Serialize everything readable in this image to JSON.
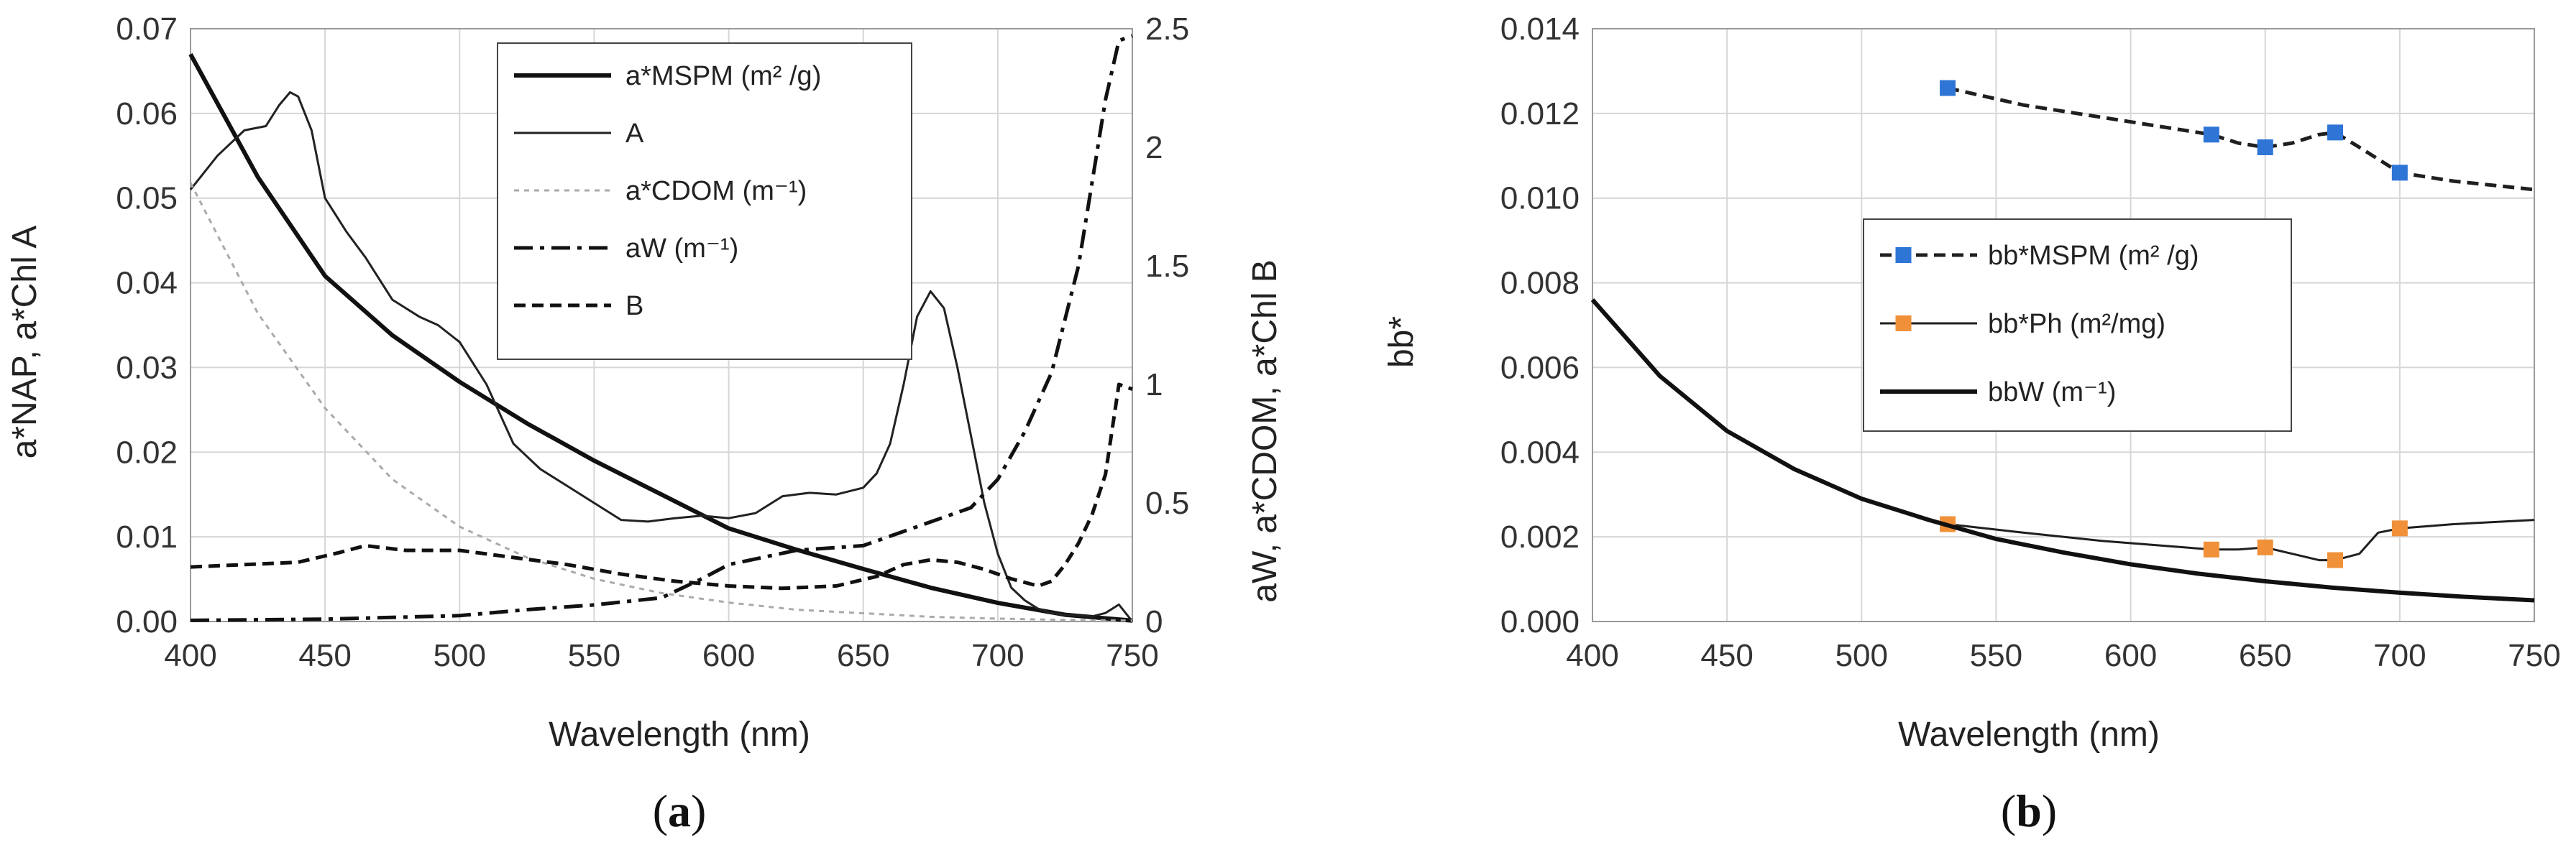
{
  "chart_data": [
    {
      "id": "a",
      "type": "line",
      "caption_open": "(",
      "caption_letter": "a",
      "caption_close": ")",
      "xlabel": "Wavelength (nm)",
      "ylabel_left": "a*NAP, a*Chl A",
      "ylabel_right": "aW, a*CDOM, a*Chl B",
      "xlim": [
        400,
        750
      ],
      "ylim_left": [
        0,
        0.07
      ],
      "ylim_right": [
        0,
        2.5
      ],
      "xticks": [
        "400",
        "450",
        "500",
        "550",
        "600",
        "650",
        "700",
        "750"
      ],
      "yticks_left": [
        "0.00",
        "0.01",
        "0.02",
        "0.03",
        "0.04",
        "0.05",
        "0.06",
        "0.07"
      ],
      "yticks_right": [
        "0",
        "0.5",
        "1",
        "1.5",
        "2",
        "2.5"
      ],
      "grid": true,
      "legend": [
        {
          "key": "aMSPM",
          "label": "a*MSPM (m² /g)"
        },
        {
          "key": "A",
          "label": "A"
        },
        {
          "key": "aCDOM",
          "label": "a*CDOM (m⁻¹)"
        },
        {
          "key": "aW",
          "label": "aW (m⁻¹)"
        },
        {
          "key": "B",
          "label": "B"
        }
      ],
      "series": [
        {
          "key": "aMSPM",
          "name": "a*MSPM (m² /g)",
          "axis": "left",
          "style": "thick",
          "color": "#111111",
          "x": [
            400,
            425,
            450,
            475,
            500,
            525,
            550,
            575,
            600,
            625,
            650,
            675,
            700,
            725,
            750
          ],
          "y": [
            0.067,
            0.0525,
            0.0408,
            0.0338,
            0.0283,
            0.0234,
            0.019,
            0.015,
            0.011,
            0.0085,
            0.0062,
            0.004,
            0.0022,
            0.0008,
            0.0001
          ]
        },
        {
          "key": "A",
          "name": "A",
          "axis": "left",
          "style": "thin",
          "color": "#222222",
          "x": [
            400,
            410,
            420,
            428,
            433,
            437,
            440,
            445,
            450,
            458,
            465,
            475,
            485,
            492,
            500,
            510,
            520,
            530,
            540,
            550,
            560,
            570,
            580,
            590,
            600,
            610,
            620,
            630,
            640,
            650,
            655,
            660,
            665,
            670,
            675,
            680,
            685,
            690,
            695,
            700,
            705,
            710,
            715,
            720,
            725,
            730,
            735,
            740,
            745,
            750
          ],
          "y": [
            0.051,
            0.055,
            0.058,
            0.0585,
            0.061,
            0.0625,
            0.062,
            0.058,
            0.05,
            0.046,
            0.043,
            0.038,
            0.036,
            0.035,
            0.033,
            0.028,
            0.021,
            0.018,
            0.016,
            0.014,
            0.012,
            0.0118,
            0.0122,
            0.0125,
            0.0122,
            0.0128,
            0.0148,
            0.0152,
            0.015,
            0.0158,
            0.0175,
            0.021,
            0.028,
            0.036,
            0.039,
            0.037,
            0.03,
            0.022,
            0.014,
            0.008,
            0.004,
            0.0025,
            0.0015,
            0.001,
            0.0008,
            0.0007,
            0.0006,
            0.001,
            0.002,
            0.0
          ]
        },
        {
          "key": "aCDOM",
          "name": "a*CDOM (m⁻¹)",
          "axis": "right",
          "style": "dotted",
          "color": "#aaaaaa",
          "x": [
            400,
            425,
            450,
            475,
            500,
            525,
            550,
            575,
            600,
            625,
            650,
            675,
            700,
            725,
            750
          ],
          "y": [
            1.85,
            1.3,
            0.9,
            0.6,
            0.4,
            0.27,
            0.18,
            0.12,
            0.08,
            0.05,
            0.035,
            0.02,
            0.012,
            0.007,
            0.004
          ]
        },
        {
          "key": "aW",
          "name": "aW (m⁻¹)",
          "axis": "right",
          "style": "dashdot",
          "color": "#111111",
          "x": [
            400,
            450,
            500,
            525,
            550,
            575,
            590,
            600,
            625,
            650,
            675,
            690,
            700,
            710,
            720,
            730,
            735,
            740,
            745,
            750
          ],
          "y": [
            0.005,
            0.01,
            0.025,
            0.05,
            0.07,
            0.1,
            0.18,
            0.24,
            0.3,
            0.32,
            0.42,
            0.48,
            0.6,
            0.8,
            1.05,
            1.5,
            1.85,
            2.2,
            2.45,
            2.47
          ]
        },
        {
          "key": "B",
          "name": "B",
          "axis": "right",
          "style": "dashed",
          "color": "#111111",
          "x": [
            400,
            420,
            440,
            455,
            465,
            480,
            500,
            520,
            540,
            560,
            580,
            600,
            620,
            640,
            655,
            665,
            675,
            685,
            695,
            705,
            715,
            720,
            725,
            730,
            735,
            740,
            745,
            750
          ],
          "y": [
            0.23,
            0.24,
            0.25,
            0.29,
            0.32,
            0.3,
            0.3,
            0.27,
            0.24,
            0.2,
            0.17,
            0.15,
            0.14,
            0.15,
            0.19,
            0.24,
            0.26,
            0.25,
            0.22,
            0.18,
            0.15,
            0.17,
            0.24,
            0.33,
            0.45,
            0.62,
            1.0,
            0.98
          ]
        }
      ]
    },
    {
      "id": "b",
      "type": "line",
      "caption_open": "(",
      "caption_letter": "b",
      "caption_close": ")",
      "xlabel": "Wavelength (nm)",
      "ylabel_left": "bb*",
      "xlim": [
        400,
        750
      ],
      "ylim_left": [
        0,
        0.014
      ],
      "xticks": [
        "400",
        "450",
        "500",
        "550",
        "600",
        "650",
        "700",
        "750"
      ],
      "yticks_left": [
        "0.000",
        "0.002",
        "0.004",
        "0.006",
        "0.008",
        "0.010",
        "0.012",
        "0.014"
      ],
      "grid": true,
      "legend": [
        {
          "key": "bbMSPM",
          "label": "bb*MSPM (m² /g)"
        },
        {
          "key": "bbPh",
          "label": "bb*Ph (m²/mg)"
        },
        {
          "key": "bbW",
          "label": "bbW (m⁻¹)"
        }
      ],
      "series": [
        {
          "key": "bbMSPM",
          "name": "bb*MSPM (m² /g)",
          "axis": "left",
          "style": "dashed",
          "color": "#1f1f1f",
          "marker_color": "#2e75d6",
          "x": [
            532,
            560,
            590,
            610,
            630,
            640,
            650,
            660,
            670,
            676,
            685,
            700,
            720,
            750
          ],
          "y": [
            0.0126,
            0.0122,
            0.0119,
            0.0117,
            0.0115,
            0.0113,
            0.0112,
            0.0113,
            0.0115,
            0.01155,
            0.0112,
            0.0106,
            0.0104,
            0.0102
          ],
          "markers": [
            [
              532,
              0.0126
            ],
            [
              630,
              0.0115
            ],
            [
              650,
              0.0112
            ],
            [
              676,
              0.01155
            ],
            [
              700,
              0.0106
            ]
          ]
        },
        {
          "key": "bbPh",
          "name": "bb*Ph (m²/mg)",
          "axis": "left",
          "style": "thin",
          "color": "#1f1f1f",
          "marker_color": "#f0913a",
          "x": [
            532,
            560,
            590,
            610,
            630,
            640,
            650,
            660,
            670,
            676,
            685,
            692,
            700,
            720,
            750
          ],
          "y": [
            0.0023,
            0.0021,
            0.0019,
            0.0018,
            0.0017,
            0.0017,
            0.00175,
            0.0016,
            0.00145,
            0.00145,
            0.0016,
            0.0021,
            0.0022,
            0.0023,
            0.0024
          ],
          "markers": [
            [
              532,
              0.0023
            ],
            [
              630,
              0.0017
            ],
            [
              650,
              0.00175
            ],
            [
              676,
              0.00145
            ],
            [
              700,
              0.0022
            ]
          ]
        },
        {
          "key": "bbW",
          "name": "bbW (m⁻¹)",
          "axis": "left",
          "style": "thick",
          "color": "#111111",
          "x": [
            400,
            425,
            450,
            475,
            500,
            525,
            550,
            575,
            600,
            625,
            650,
            675,
            700,
            725,
            750
          ],
          "y": [
            0.0076,
            0.0058,
            0.0045,
            0.0036,
            0.0029,
            0.0024,
            0.00195,
            0.00163,
            0.00135,
            0.00113,
            0.00095,
            0.0008,
            0.00068,
            0.00058,
            0.0005
          ]
        }
      ]
    }
  ]
}
